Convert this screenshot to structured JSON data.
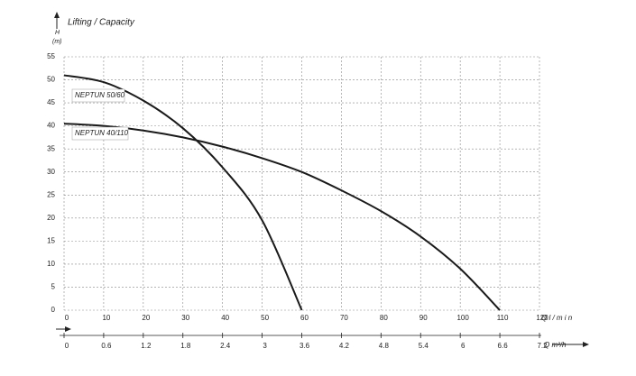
{
  "chart_data": {
    "type": "line",
    "title": "Lifting / Capacity",
    "y_label": "H",
    "y_unit": "(m)",
    "x_label": "Q l / m i n",
    "x2_label": "Q m³/h",
    "xlim": [
      0,
      120
    ],
    "xticks": [
      0,
      10,
      20,
      30,
      40,
      50,
      60,
      70,
      80,
      90,
      100,
      110,
      120
    ],
    "x2lim": [
      0,
      7.2
    ],
    "x2ticks": [
      0,
      0.6,
      1.2,
      1.8,
      2.4,
      3,
      3.6,
      4.2,
      4.8,
      5.4,
      6,
      6.6,
      7.2
    ],
    "ylim": [
      0,
      55
    ],
    "yticks": [
      0,
      5,
      10,
      15,
      20,
      25,
      30,
      35,
      40,
      45,
      50,
      55
    ],
    "grid": true,
    "series": [
      {
        "name": "NEPTUN 50/60",
        "color": "#1a1a1a",
        "x": [
          0,
          10,
          20,
          30,
          40,
          50,
          60
        ],
        "values": [
          51,
          49.5,
          45.5,
          39.5,
          31,
          19.5,
          0
        ]
      },
      {
        "name": "NEPTUN 40/110",
        "color": "#1a1a1a",
        "x": [
          0,
          10,
          20,
          30,
          40,
          50,
          60,
          70,
          80,
          90,
          100,
          110
        ],
        "values": [
          40.5,
          40,
          39,
          37.5,
          35.5,
          33,
          30,
          26,
          21.5,
          16,
          9,
          0
        ]
      }
    ]
  }
}
